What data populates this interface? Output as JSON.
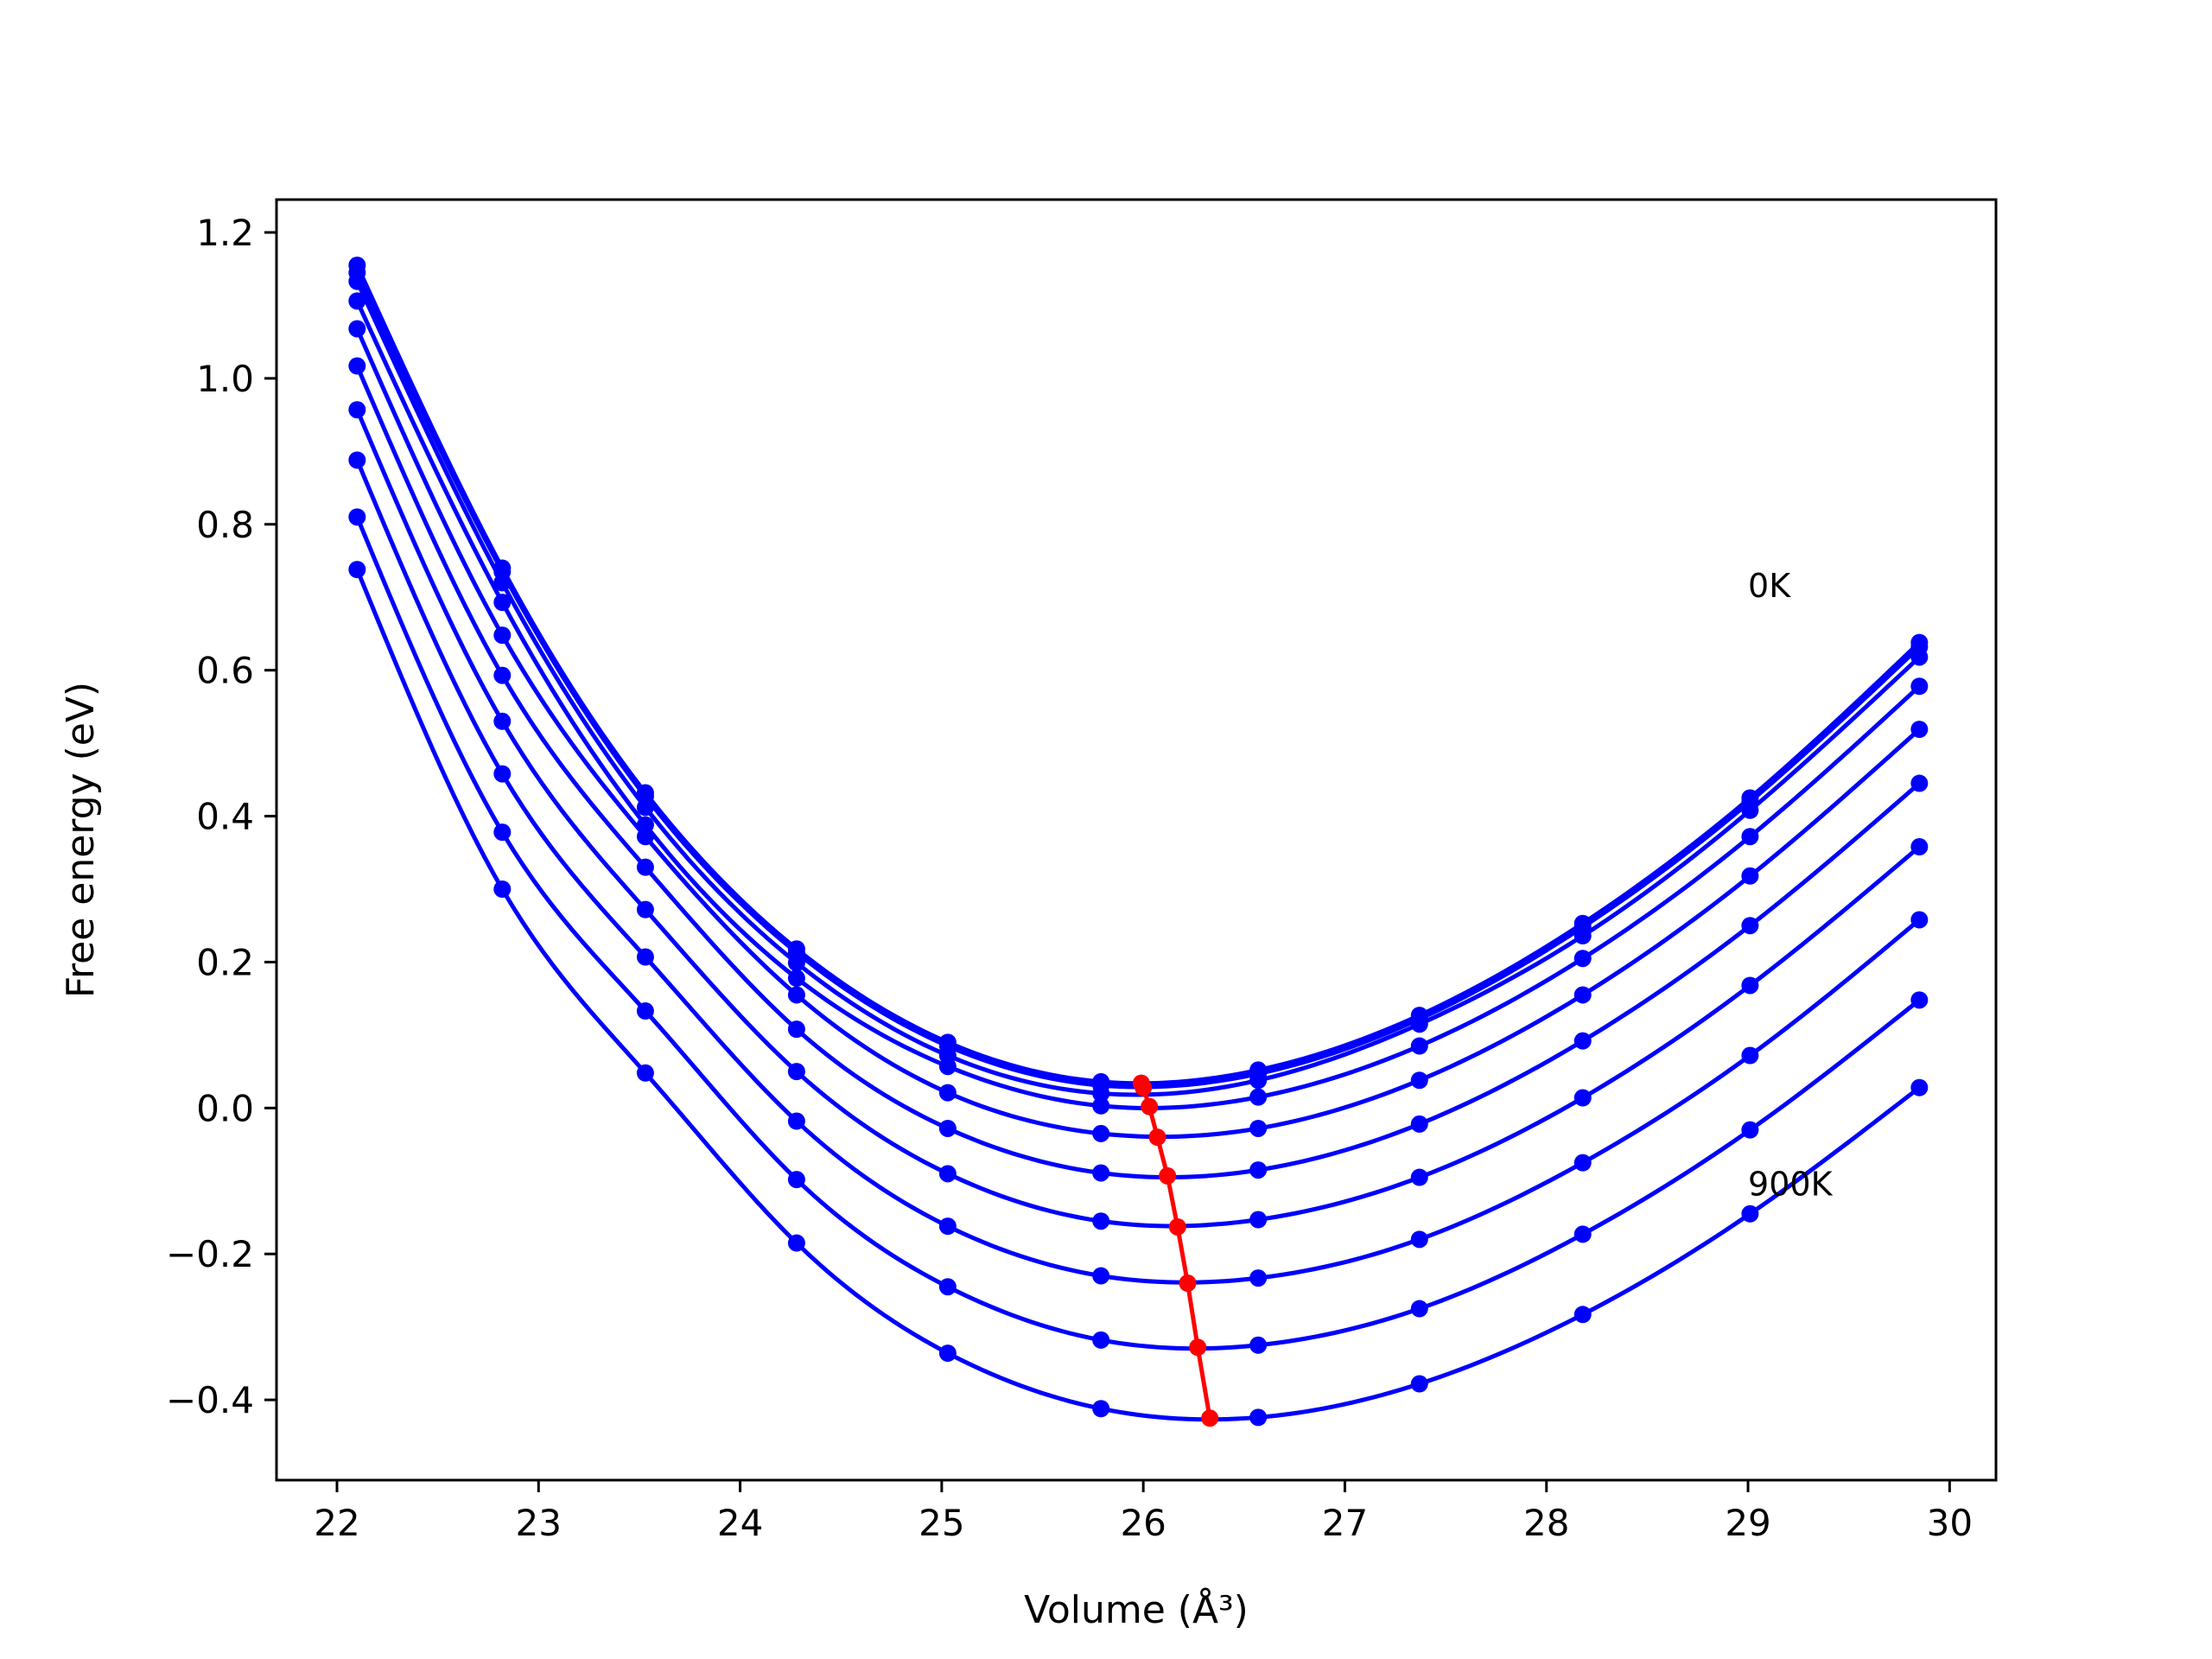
{
  "chart_data": {
    "type": "line",
    "title": "",
    "xlabel": "Volume (Å³)",
    "ylabel": "Free energy (eV)",
    "xlim": [
      21.7,
      30.23
    ],
    "ylim": [
      -0.51,
      1.245
    ],
    "xticks": [
      "22",
      "23",
      "24",
      "25",
      "26",
      "27",
      "28",
      "29",
      "30"
    ],
    "xtick_values": [
      22,
      23,
      24,
      25,
      26,
      27,
      28,
      29,
      30
    ],
    "yticks": [
      "−0.4",
      "−0.2",
      "0.0",
      "0.2",
      "0.4",
      "0.6",
      "0.8",
      "1.0",
      "1.2"
    ],
    "ytick_values": [
      -0.4,
      -0.2,
      0.0,
      0.2,
      0.4,
      0.6,
      0.8,
      1.0,
      1.2
    ],
    "grid": false,
    "legend": "none",
    "annotations": [
      {
        "text": "0K",
        "x": 29.0,
        "y": 0.7
      },
      {
        "text": "900K",
        "x": 29.0,
        "y": -0.12
      }
    ],
    "x": [
      22.1,
      22.82,
      23.53,
      24.28,
      25.03,
      25.79,
      26.57,
      27.37,
      28.18,
      29.01,
      29.85
    ],
    "series": [
      {
        "values": [
          1.155,
          0.74,
          0.432,
          0.218,
          0.09,
          0.036,
          0.052,
          0.127,
          0.253,
          0.425,
          0.638
        ],
        "color": "#0000ff"
      },
      {
        "values": [
          1.145,
          0.735,
          0.427,
          0.213,
          0.085,
          0.031,
          0.047,
          0.122,
          0.248,
          0.42,
          0.632
        ],
        "color": "#0000ff"
      },
      {
        "values": [
          1.133,
          0.72,
          0.412,
          0.199,
          0.072,
          0.02,
          0.038,
          0.115,
          0.236,
          0.408,
          0.618
        ],
        "color": "#0000ff"
      },
      {
        "values": [
          1.106,
          0.693,
          0.388,
          0.178,
          0.057,
          0.003,
          0.015,
          0.085,
          0.205,
          0.372,
          0.578
        ],
        "color": "#0000ff"
      },
      {
        "values": [
          1.068,
          0.648,
          0.372,
          0.155,
          0.021,
          -0.035,
          -0.028,
          0.038,
          0.155,
          0.318,
          0.519
        ],
        "color": "#0000ff"
      },
      {
        "values": [
          1.017,
          0.593,
          0.33,
          0.108,
          -0.028,
          -0.089,
          -0.085,
          -0.022,
          0.092,
          0.25,
          0.445
        ],
        "color": "#0000ff"
      },
      {
        "values": [
          0.957,
          0.53,
          0.272,
          0.05,
          -0.09,
          -0.155,
          -0.153,
          -0.095,
          0.014,
          0.168,
          0.358
        ],
        "color": "#0000ff"
      },
      {
        "values": [
          0.888,
          0.458,
          0.207,
          -0.018,
          -0.162,
          -0.23,
          -0.233,
          -0.18,
          -0.075,
          0.072,
          0.258
        ],
        "color": "#0000ff"
      },
      {
        "values": [
          0.81,
          0.378,
          0.133,
          -0.098,
          -0.245,
          -0.318,
          -0.325,
          -0.275,
          -0.173,
          -0.03,
          0.148
        ],
        "color": "#0000ff"
      },
      {
        "values": [
          0.738,
          0.3,
          0.048,
          -0.185,
          -0.336,
          -0.412,
          -0.424,
          -0.378,
          -0.283,
          -0.145,
          0.028
        ],
        "color": "#0000ff"
      }
    ],
    "minima_series": {
      "color": "#ff0000",
      "x": [
        25.99,
        26.0,
        26.03,
        26.07,
        26.12,
        26.17,
        26.22,
        26.27,
        26.33
      ],
      "y": [
        0.034,
        0.028,
        0.002,
        -0.04,
        -0.093,
        -0.163,
        -0.24,
        -0.328,
        -0.425
      ]
    }
  }
}
